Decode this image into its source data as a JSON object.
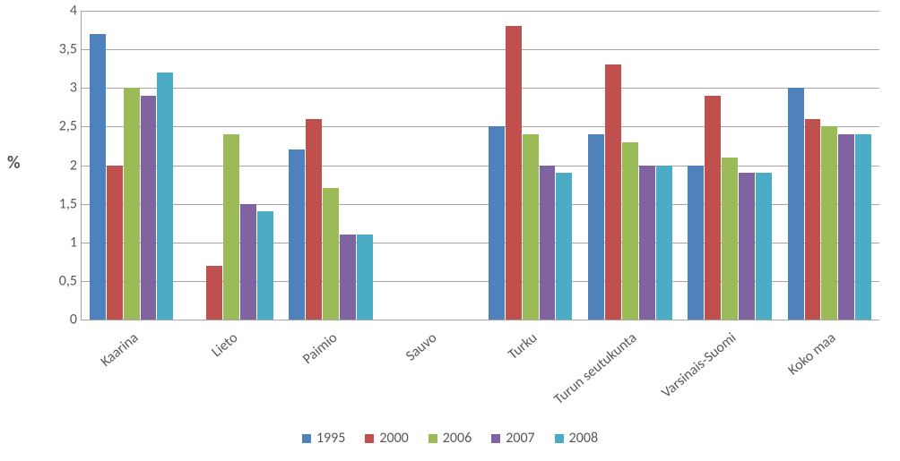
{
  "chart": {
    "type": "bar",
    "y_label": "%",
    "y_label_fontsize": 20,
    "label_fontsize": 16,
    "background_color": "#ffffff",
    "grid_color": "#a6a6a6",
    "ylim": [
      0,
      4
    ],
    "ytick_step": 0.5,
    "y_ticks": [
      "0",
      "0,5",
      "1",
      "1,5",
      "2",
      "2,5",
      "3",
      "3,5",
      "4"
    ],
    "bar_group_gap_pct": 16,
    "series": [
      {
        "name": "1995",
        "color": "#4f81bd"
      },
      {
        "name": "2000",
        "color": "#c0504d"
      },
      {
        "name": "2006",
        "color": "#9bbb59"
      },
      {
        "name": "2007",
        "color": "#8064a2"
      },
      {
        "name": "2008",
        "color": "#4bacc6"
      }
    ],
    "categories": [
      {
        "label": "Kaarina",
        "values": [
          3.7,
          2.0,
          3.0,
          2.9,
          3.2
        ]
      },
      {
        "label": "Lieto",
        "values": [
          0.0,
          0.7,
          2.4,
          1.5,
          1.4
        ]
      },
      {
        "label": "Paimio",
        "values": [
          2.2,
          2.6,
          1.7,
          1.1,
          1.1
        ]
      },
      {
        "label": "Sauvo",
        "values": [
          0.0,
          0.0,
          0.0,
          0.0,
          0.0
        ]
      },
      {
        "label": "Turku",
        "values": [
          2.5,
          3.8,
          2.4,
          2.0,
          1.9
        ]
      },
      {
        "label": "Turun seutukunta",
        "values": [
          2.4,
          3.3,
          2.3,
          2.0,
          2.0
        ]
      },
      {
        "label": "Varsinais-Suomi",
        "values": [
          2.0,
          2.9,
          2.1,
          1.9,
          1.9
        ]
      },
      {
        "label": "Koko maa",
        "values": [
          3.0,
          2.6,
          2.5,
          2.4,
          2.4
        ]
      }
    ]
  }
}
